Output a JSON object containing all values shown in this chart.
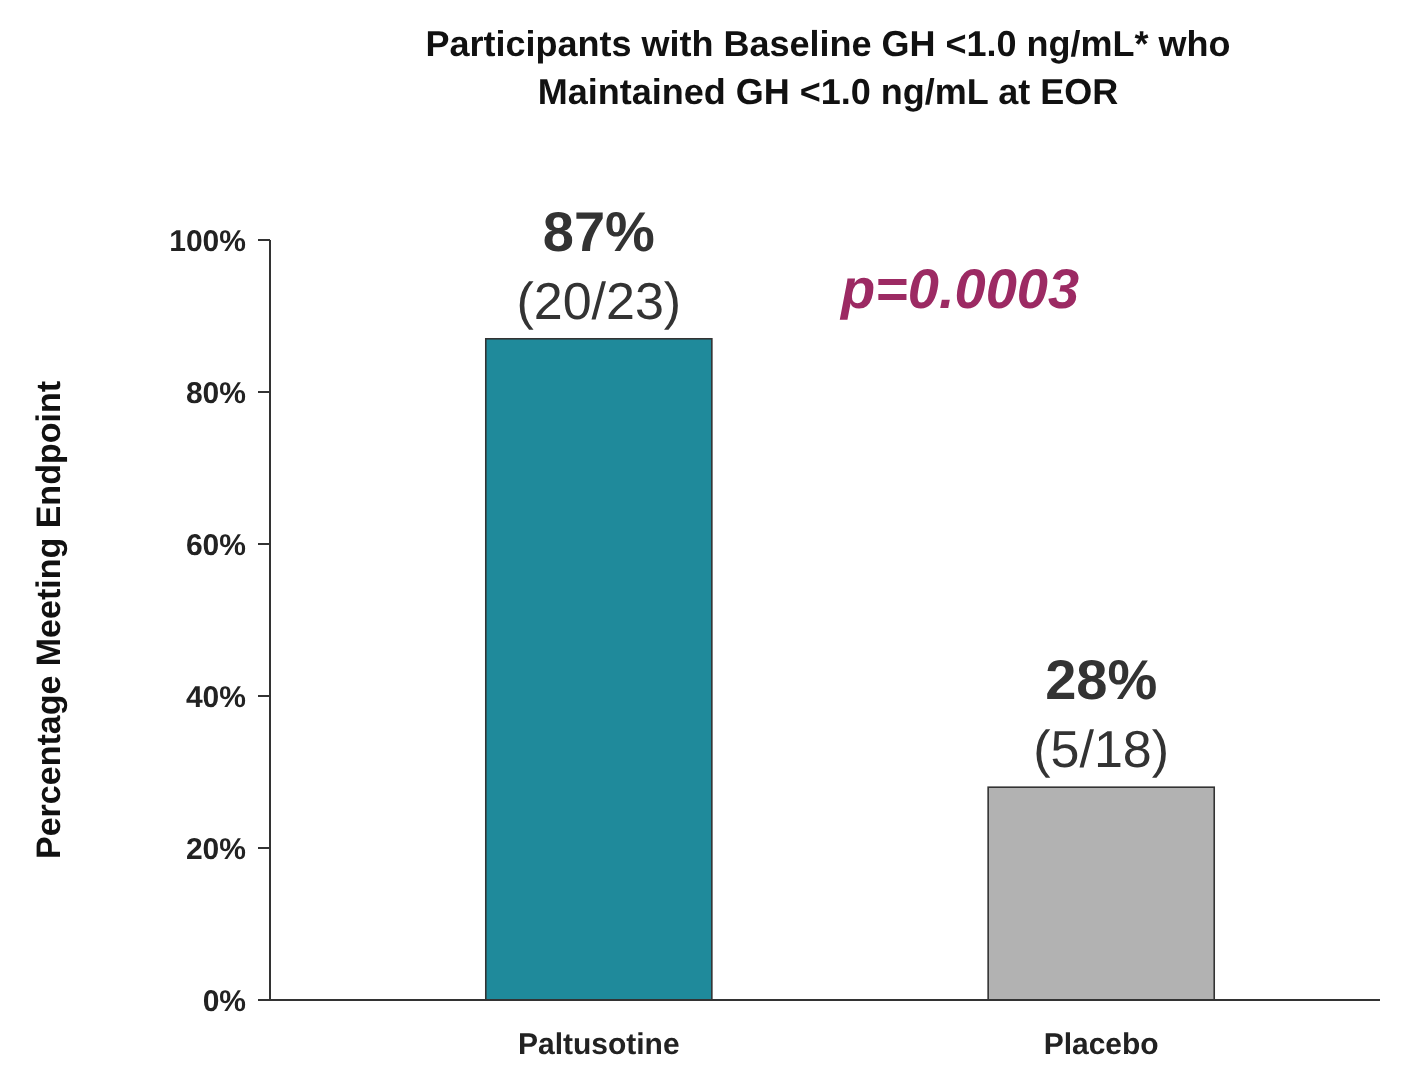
{
  "chart_data": {
    "type": "bar",
    "title": "Participants with Baseline GH <1.0 ng/mL* who Maintained GH <1.0 ng/mL at EOR",
    "ylabel": "Percentage Meeting Endpoint",
    "categories": [
      "Paltusotine",
      "Placebo"
    ],
    "values": [
      87,
      28
    ],
    "colors": [
      "#1f8a9b",
      "#b2b2b2"
    ],
    "value_labels": [
      "87%",
      "28%"
    ],
    "ylim": [
      0,
      100
    ],
    "yticks": [
      {
        "value": 0,
        "label": "0%"
      },
      {
        "value": 20,
        "label": "20%"
      },
      {
        "value": 40,
        "label": "40%"
      },
      {
        "value": 60,
        "label": "60%"
      },
      {
        "value": 80,
        "label": "80%"
      },
      {
        "value": 100,
        "label": "100%"
      }
    ],
    "annotations": [
      {
        "text": "(20/23)",
        "x": "Paltusotine",
        "y": 87
      },
      {
        "text": "(5/18)",
        "x": "Placebo",
        "y": 28
      },
      "p=0.0003"
    ],
    "grid": false
  }
}
